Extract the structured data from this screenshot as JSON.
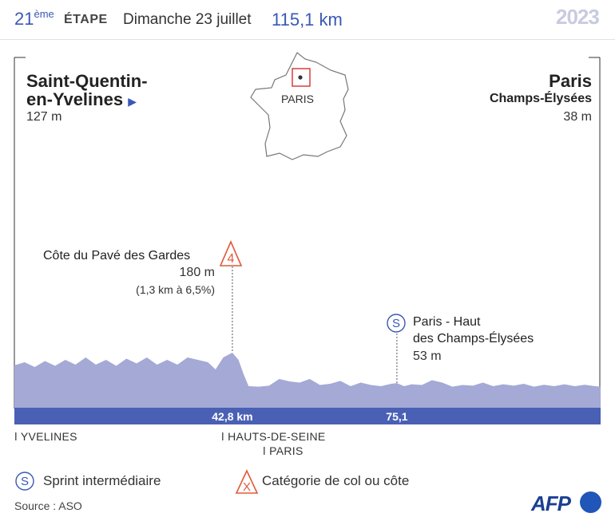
{
  "header": {
    "stage_number": "21",
    "stage_suffix": "ème",
    "stage_word": "ÉTAPE",
    "date": "Dimanche 23 juillet",
    "distance": "115,1 km",
    "year": "2023"
  },
  "start": {
    "name_line1": "Saint-Quentin-",
    "name_line2": "en-Yvelines",
    "altitude": "127 m"
  },
  "finish": {
    "name": "Paris",
    "subname": "Champs-Élysées",
    "altitude": "38 m"
  },
  "map": {
    "city_label": "PARIS"
  },
  "colors": {
    "profile_fill": "#a4a9d6",
    "base_band": "#4a60b5",
    "accent_blue": "#3a58b5",
    "climb_red": "#e05a3a"
  },
  "chart_data": {
    "type": "area",
    "title": "",
    "xlabel": "",
    "ylabel": "",
    "x_unit": "km",
    "total_distance_km": 115.1,
    "xlim": [
      0,
      115.1
    ],
    "profile": [
      [
        0,
        127
      ],
      [
        2,
        140
      ],
      [
        4,
        120
      ],
      [
        6,
        145
      ],
      [
        8,
        125
      ],
      [
        10,
        150
      ],
      [
        12,
        130
      ],
      [
        14,
        160
      ],
      [
        16,
        130
      ],
      [
        18,
        150
      ],
      [
        20,
        125
      ],
      [
        22,
        155
      ],
      [
        24,
        135
      ],
      [
        26,
        160
      ],
      [
        28,
        130
      ],
      [
        30,
        150
      ],
      [
        32,
        130
      ],
      [
        34,
        160
      ],
      [
        36,
        150
      ],
      [
        38,
        140
      ],
      [
        39.5,
        110
      ],
      [
        41,
        160
      ],
      [
        42.8,
        180
      ],
      [
        44,
        150
      ],
      [
        45,
        90
      ],
      [
        46,
        40
      ],
      [
        48,
        38
      ],
      [
        50,
        42
      ],
      [
        52,
        70
      ],
      [
        54,
        60
      ],
      [
        56,
        55
      ],
      [
        58,
        70
      ],
      [
        60,
        45
      ],
      [
        62,
        50
      ],
      [
        64,
        62
      ],
      [
        66,
        40
      ],
      [
        68,
        55
      ],
      [
        70,
        45
      ],
      [
        72,
        40
      ],
      [
        74,
        50
      ],
      [
        75.1,
        53
      ],
      [
        76.5,
        40
      ],
      [
        78,
        48
      ],
      [
        80,
        45
      ],
      [
        82,
        65
      ],
      [
        84,
        55
      ],
      [
        86,
        38
      ],
      [
        88,
        45
      ],
      [
        90,
        42
      ],
      [
        92,
        55
      ],
      [
        94,
        40
      ],
      [
        96,
        48
      ],
      [
        98,
        42
      ],
      [
        100,
        50
      ],
      [
        102,
        38
      ],
      [
        104,
        46
      ],
      [
        106,
        40
      ],
      [
        108,
        48
      ],
      [
        110,
        40
      ],
      [
        112,
        46
      ],
      [
        114,
        40
      ],
      [
        115.1,
        38
      ]
    ],
    "distance_labels": [
      {
        "km": 42.8,
        "text": "42,8 km"
      },
      {
        "km": 75.1,
        "text": "75,1"
      }
    ],
    "markers": [
      {
        "type": "climb",
        "km": 42.8,
        "category": "4",
        "name": "Côte du Pavé des Gardes",
        "altitude": "180 m",
        "detail": "(1,3 km à 6,5%)"
      },
      {
        "type": "sprint",
        "km": 75.1,
        "symbol": "S",
        "name_line1": "Paris - Haut",
        "name_line2": "des Champs-Élysées",
        "altitude": "53 m"
      }
    ]
  },
  "regions": [
    {
      "name": "YVELINES"
    },
    {
      "name": "HAUTS-DE-SEINE"
    },
    {
      "name": "PARIS"
    }
  ],
  "legend": {
    "sprint_symbol": "S",
    "sprint_label": "Sprint intermédiaire",
    "cat_symbol": "X",
    "cat_label": "Catégorie de col ou côte"
  },
  "source": "Source : ASO",
  "logo_text": "AFP"
}
